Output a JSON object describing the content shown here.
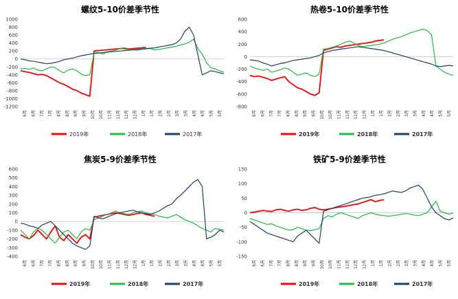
{
  "chart_data": [
    {
      "type": "line",
      "title": "螺纹5-10价差季节性",
      "ylim": [
        -1200,
        1000
      ],
      "yticks": [
        1000,
        800,
        600,
        400,
        200,
        0,
        -200,
        -400,
        -600,
        -800,
        -1000,
        -1200
      ],
      "xticks": [
        "6月",
        "6月",
        "7月",
        "7月",
        "8月",
        "8月",
        "9月",
        "9月",
        "10月",
        "10月",
        "11月",
        "11月",
        "12月",
        "12月",
        "1月",
        "1月",
        "2月",
        "2月",
        "3月",
        "3月",
        "4月",
        "4月",
        "5月",
        "5月"
      ],
      "legend_bold": false,
      "series": [
        {
          "name": "2019年",
          "color": "#ff0000",
          "values": [
            -300,
            -320,
            -340,
            -370,
            -400,
            -390,
            -420,
            -480,
            -540,
            -600,
            -640,
            -700,
            -760,
            -800,
            -860,
            -900,
            -940,
            200,
            210,
            220,
            230,
            240,
            250,
            260,
            270,
            250,
            260,
            270,
            280,
            290,
            null,
            null,
            null,
            null,
            null,
            null,
            null,
            null,
            null,
            null,
            null,
            null,
            null,
            null,
            null,
            null,
            null,
            null
          ]
        },
        {
          "name": "2018年",
          "color": "#1fbf3f",
          "values": [
            -250,
            -240,
            -260,
            -230,
            -280,
            -300,
            -250,
            -200,
            -220,
            -300,
            -350,
            -280,
            -250,
            -300,
            -380,
            -420,
            -400,
            150,
            160,
            120,
            180,
            200,
            220,
            260,
            250,
            240,
            230,
            220,
            240,
            250,
            260,
            230,
            240,
            260,
            280,
            300,
            320,
            350,
            380,
            420,
            500,
            260,
            120,
            -100,
            -220,
            -250,
            -300,
            -330
          ]
        },
        {
          "name": "2017年",
          "color": "#1f3c6e",
          "values": [
            0,
            -20,
            -50,
            -60,
            -80,
            -100,
            -120,
            -110,
            -90,
            -60,
            -20,
            0,
            20,
            50,
            80,
            100,
            120,
            140,
            150,
            160,
            170,
            180,
            190,
            200,
            210,
            220,
            230,
            240,
            250,
            260,
            270,
            280,
            300,
            320,
            340,
            360,
            400,
            500,
            700,
            800,
            600,
            100,
            -400,
            -350,
            -300,
            -320,
            -350,
            -370
          ]
        }
      ]
    },
    {
      "type": "line",
      "title": "热卷5-10价差季节性",
      "ylim": [
        -800,
        600
      ],
      "yticks": [
        600,
        400,
        200,
        0,
        -200,
        -400,
        -600,
        -800
      ],
      "xticks": [
        "6月",
        "6月",
        "7月",
        "7月",
        "8月",
        "8月",
        "9月",
        "9月",
        "10月",
        "10月",
        "11月",
        "11月",
        "12月",
        "12月",
        "1月",
        "1月",
        "2月",
        "2月",
        "3月",
        "3月",
        "4月",
        "4月",
        "5月",
        "5月"
      ],
      "legend_bold": true,
      "series": [
        {
          "name": "2019年",
          "color": "#ff0000",
          "values": [
            -300,
            -320,
            -310,
            -330,
            -350,
            -380,
            -360,
            -340,
            -320,
            -400,
            -450,
            -500,
            -520,
            -560,
            -600,
            -620,
            -580,
            100,
            120,
            140,
            160,
            150,
            170,
            180,
            190,
            200,
            210,
            220,
            230,
            250,
            260,
            270,
            null,
            null,
            null,
            null,
            null,
            null,
            null,
            null,
            null,
            null,
            null,
            null,
            null,
            null,
            null,
            null
          ]
        },
        {
          "name": "2018年",
          "color": "#1fbf3f",
          "values": [
            -150,
            -180,
            -200,
            -220,
            -200,
            -250,
            -230,
            -210,
            -180,
            -200,
            -250,
            -300,
            -280,
            -260,
            -300,
            -320,
            -280,
            120,
            130,
            150,
            170,
            200,
            230,
            250,
            220,
            180,
            160,
            170,
            180,
            190,
            200,
            220,
            250,
            280,
            300,
            320,
            350,
            380,
            400,
            420,
            440,
            420,
            350,
            -150,
            -200,
            -250,
            -280,
            -300
          ]
        },
        {
          "name": "2017年",
          "color": "#1f3c6e",
          "values": [
            -50,
            -60,
            -70,
            -100,
            -120,
            -150,
            -130,
            -110,
            -100,
            -80,
            -60,
            -50,
            -40,
            -30,
            -20,
            0,
            20,
            60,
            80,
            100,
            110,
            120,
            130,
            140,
            150,
            160,
            150,
            140,
            130,
            120,
            110,
            100,
            80,
            60,
            40,
            20,
            0,
            -20,
            -40,
            -60,
            -80,
            -100,
            -120,
            -150,
            -160,
            -150,
            -140,
            -150
          ]
        }
      ]
    },
    {
      "type": "line",
      "title": "焦炭5-9价差季节性",
      "ylim": [
        -400,
        600
      ],
      "yticks": [
        600,
        500,
        400,
        300,
        200,
        100,
        0,
        -100,
        -200,
        -300,
        -400
      ],
      "xticks": [
        "6月",
        "6月",
        "7月",
        "7月",
        "8月",
        "8月",
        "9月",
        "9月",
        "10月",
        "10月",
        "11月",
        "11月",
        "12月",
        "12月",
        "1月",
        "1月",
        "2月",
        "2月",
        "3月",
        "3月",
        "4月",
        "4月",
        "5月",
        "5月"
      ],
      "legend_bold": true,
      "series": [
        {
          "name": "2019年",
          "color": "#ff0000",
          "values": [
            -150,
            -180,
            -200,
            -160,
            -100,
            -150,
            -200,
            -120,
            -50,
            -180,
            -220,
            -150,
            -200,
            -250,
            -180,
            -150,
            -200,
            50,
            60,
            70,
            80,
            90,
            100,
            90,
            80,
            70,
            80,
            90,
            100,
            80,
            70,
            60,
            null,
            null,
            null,
            null,
            null,
            null,
            null,
            null,
            null,
            null,
            null,
            null,
            null,
            null,
            null,
            null
          ]
        },
        {
          "name": "2018年",
          "color": "#1fbf3f",
          "values": [
            -100,
            -150,
            -200,
            -120,
            -80,
            -100,
            -150,
            -200,
            -250,
            -180,
            -120,
            -100,
            -150,
            -200,
            -120,
            -80,
            -100,
            20,
            40,
            60,
            80,
            100,
            120,
            100,
            90,
            80,
            100,
            110,
            120,
            100,
            90,
            80,
            60,
            50,
            40,
            60,
            80,
            50,
            20,
            0,
            -20,
            -50,
            -80,
            -100,
            -120,
            -80,
            -90,
            -100
          ]
        },
        {
          "name": "2017年",
          "color": "#1f3c6e",
          "values": [
            -20,
            -30,
            -50,
            -60,
            -80,
            -40,
            -20,
            0,
            -50,
            -100,
            -150,
            -200,
            -250,
            -280,
            -300,
            -320,
            -280,
            60,
            40,
            30,
            50,
            70,
            90,
            100,
            110,
            120,
            130,
            110,
            100,
            90,
            80,
            100,
            120,
            150,
            180,
            200,
            260,
            300,
            350,
            400,
            450,
            480,
            400,
            -200,
            -180,
            -150,
            -100,
            -120
          ]
        }
      ]
    },
    {
      "type": "line",
      "title": "铁矿5-9价差季节性",
      "ylim": [
        -150,
        150
      ],
      "yticks": [
        150,
        100,
        50,
        0,
        -50,
        -100,
        -150
      ],
      "xticks": [
        "6月",
        "6月",
        "7月",
        "7月",
        "8月",
        "8月",
        "9月",
        "9月",
        "10月",
        "10月",
        "11月",
        "11月",
        "12月",
        "12月",
        "1月",
        "1月",
        "2月",
        "2月",
        "3月",
        "3月",
        "4月",
        "4月",
        "5月",
        "5月"
      ],
      "legend_bold": true,
      "series": [
        {
          "name": "2019年",
          "color": "#ff0000",
          "values": [
            0,
            2,
            5,
            8,
            6,
            4,
            10,
            12,
            8,
            5,
            10,
            12,
            8,
            10,
            15,
            18,
            12,
            10,
            12,
            15,
            18,
            20,
            22,
            25,
            28,
            30,
            35,
            40,
            45,
            38,
            42,
            45,
            null,
            null,
            null,
            null,
            null,
            null,
            null,
            null,
            null,
            null,
            null,
            null,
            null,
            null,
            null,
            null
          ]
        },
        {
          "name": "2018年",
          "color": "#1fbf3f",
          "values": [
            -20,
            -25,
            -30,
            -35,
            -40,
            -38,
            -45,
            -50,
            -55,
            -60,
            -58,
            -50,
            -55,
            -60,
            -62,
            -58,
            -55,
            -20,
            -10,
            -15,
            -5,
            0,
            -5,
            -10,
            -15,
            -20,
            -10,
            -5,
            0,
            -5,
            -8,
            -10,
            -12,
            -10,
            -8,
            -5,
            -3,
            -5,
            -8,
            -10,
            -5,
            0,
            20,
            40,
            5,
            0,
            -5,
            -2
          ]
        },
        {
          "name": "2017年",
          "color": "#1f3c6e",
          "values": [
            -30,
            -40,
            -50,
            -60,
            -70,
            -75,
            -80,
            -85,
            -90,
            -95,
            -100,
            -80,
            -70,
            -60,
            -75,
            -90,
            -105,
            5,
            10,
            15,
            20,
            25,
            30,
            35,
            40,
            45,
            50,
            52,
            55,
            60,
            62,
            65,
            70,
            75,
            72,
            70,
            75,
            85,
            90,
            95,
            80,
            50,
            20,
            0,
            -10,
            -20,
            -25,
            -18
          ]
        }
      ]
    }
  ]
}
